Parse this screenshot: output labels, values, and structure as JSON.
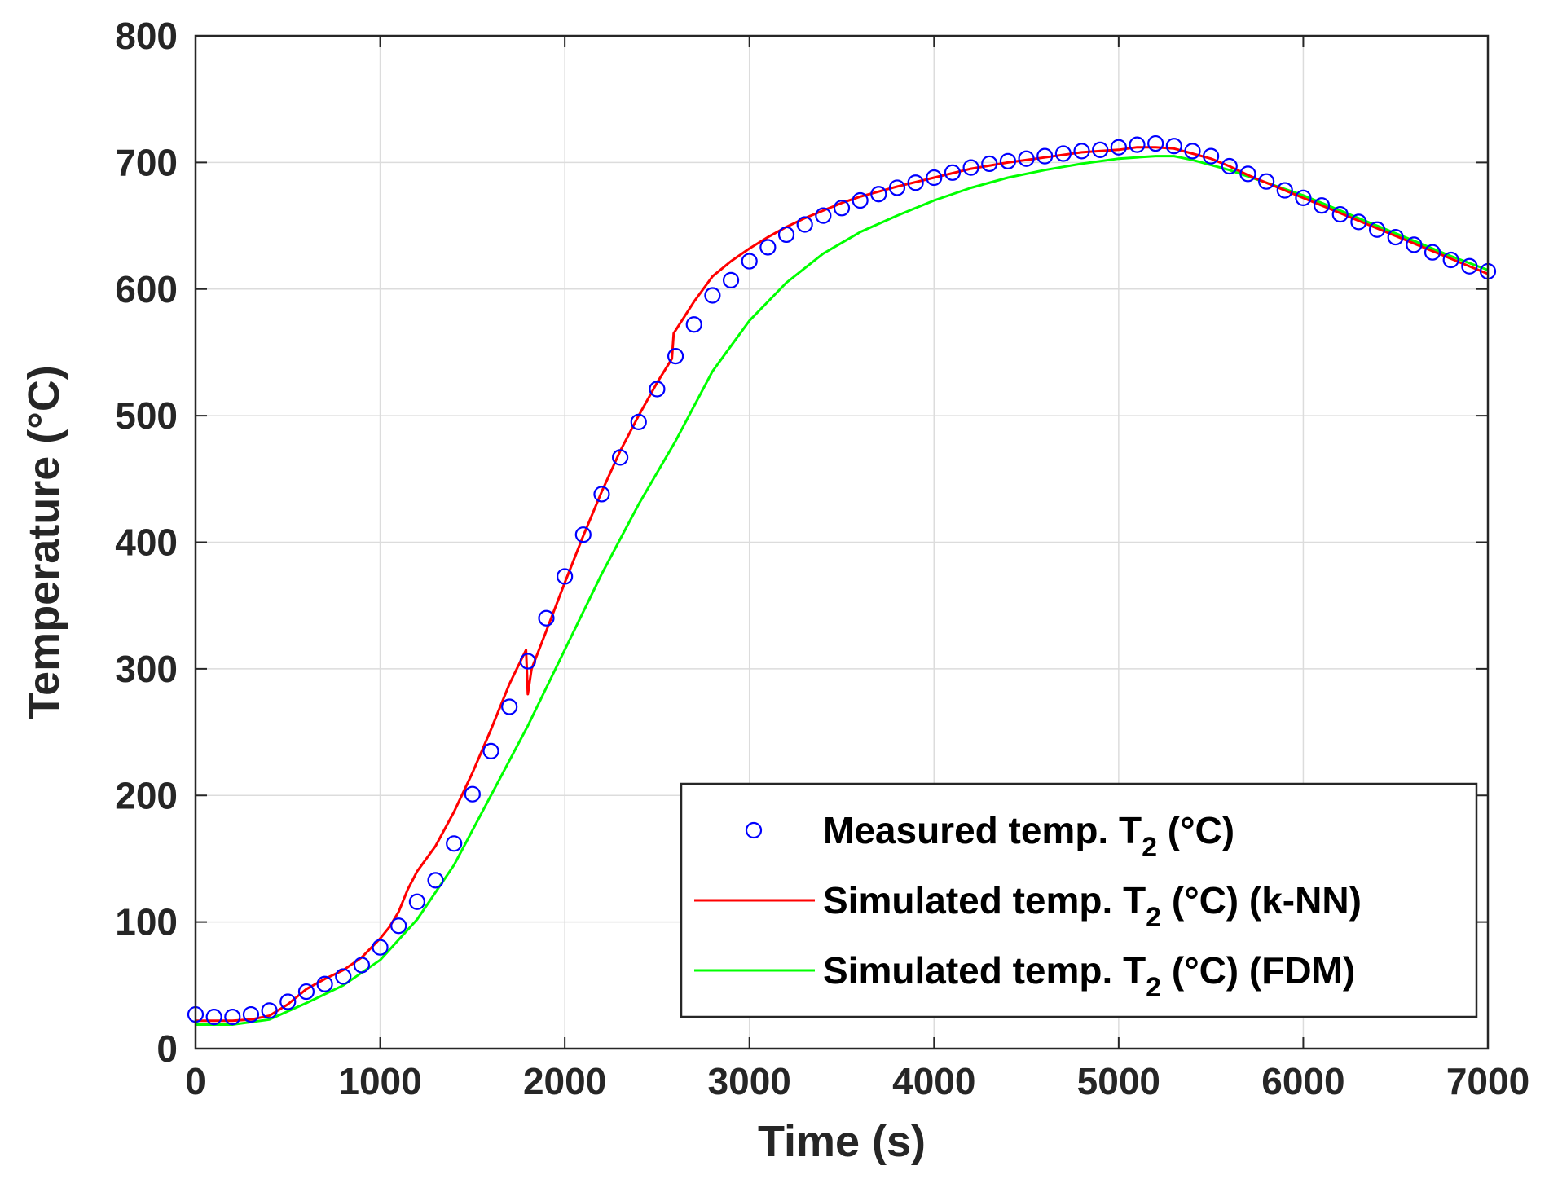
{
  "chart_data": {
    "type": "line",
    "title": "",
    "xlabel": "Time (s)",
    "ylabel": "Temperature (°C)",
    "xlim": [
      0,
      7000
    ],
    "ylim": [
      0,
      800
    ],
    "xticks": [
      "0",
      "1000",
      "2000",
      "3000",
      "4000",
      "5000",
      "6000",
      "7000"
    ],
    "yticks": [
      "0",
      "100",
      "200",
      "300",
      "400",
      "500",
      "600",
      "700",
      "800"
    ],
    "grid": true,
    "legend_position": "bottom-right",
    "colors": {
      "measured": "#0000ff",
      "knn": "#ff0000",
      "fdm": "#00ff00",
      "axis": "#262626",
      "grid": "#dcdcdc"
    },
    "series": [
      {
        "name": "Measured temp. T",
        "subscript": "2",
        "suffix": " (°C)",
        "style": "markers",
        "x": [
          0,
          100,
          200,
          300,
          400,
          500,
          600,
          700,
          800,
          900,
          1000,
          1100,
          1200,
          1300,
          1400,
          1500,
          1600,
          1700,
          1800,
          1900,
          2000,
          2100,
          2200,
          2300,
          2400,
          2500,
          2600,
          2700,
          2800,
          2900,
          3000,
          3100,
          3200,
          3300,
          3400,
          3500,
          3600,
          3700,
          3800,
          3900,
          4000,
          4100,
          4200,
          4300,
          4400,
          4500,
          4600,
          4700,
          4800,
          4900,
          5000,
          5100,
          5200,
          5300,
          5400,
          5500,
          5600,
          5700,
          5800,
          5900,
          6000,
          6100,
          6200,
          6300,
          6400,
          6500,
          6600,
          6700,
          6800,
          6900,
          7000
        ],
        "y": [
          27,
          25,
          25,
          27,
          30,
          37,
          45,
          51,
          57,
          66,
          80,
          97,
          116,
          133,
          162,
          201,
          235,
          270,
          306,
          340,
          373,
          406,
          438,
          467,
          495,
          521,
          547,
          572,
          595,
          607,
          622,
          633,
          643,
          651,
          658,
          664,
          670,
          675,
          680,
          684,
          688,
          692,
          696,
          699,
          701,
          703,
          705,
          707,
          709,
          710,
          712,
          714,
          715,
          713,
          709,
          705,
          697,
          691,
          685,
          678,
          672,
          666,
          659,
          653,
          647,
          641,
          635,
          629,
          623,
          618,
          614
        ]
      },
      {
        "name": "Simulated temp. T",
        "subscript": "2",
        "suffix": " (°C) (k-NN)",
        "style": "line",
        "x": [
          0,
          100,
          200,
          300,
          400,
          500,
          600,
          700,
          800,
          900,
          1000,
          1050,
          1100,
          1150,
          1200,
          1300,
          1400,
          1500,
          1600,
          1700,
          1790,
          1800,
          1820,
          1900,
          2000,
          2100,
          2200,
          2300,
          2400,
          2500,
          2580,
          2590,
          2700,
          2800,
          2900,
          3000,
          3100,
          3200,
          3300,
          3400,
          3500,
          3600,
          3800,
          4000,
          4200,
          4400,
          4600,
          4800,
          5000,
          5100,
          5200,
          5300,
          5400,
          5500,
          5600,
          5700,
          5800,
          5900,
          6000,
          6200,
          6400,
          6600,
          6800,
          7000
        ],
        "y": [
          22,
          22,
          22,
          23,
          26,
          35,
          47,
          55,
          62,
          72,
          87,
          96,
          108,
          126,
          140,
          160,
          187,
          218,
          252,
          288,
          315,
          280,
          300,
          330,
          368,
          405,
          440,
          472,
          500,
          526,
          545,
          565,
          590,
          610,
          622,
          632,
          641,
          649,
          656,
          662,
          668,
          673,
          681,
          688,
          695,
          700,
          704,
          708,
          710,
          712,
          712,
          711,
          707,
          703,
          697,
          690,
          684,
          678,
          672,
          660,
          648,
          636,
          624,
          612
        ]
      },
      {
        "name": "Simulated temp. T",
        "subscript": "2",
        "suffix": " (°C) (FDM)",
        "style": "line",
        "x": [
          0,
          200,
          400,
          600,
          800,
          1000,
          1200,
          1400,
          1600,
          1800,
          2000,
          2200,
          2400,
          2600,
          2800,
          3000,
          3200,
          3400,
          3600,
          3800,
          4000,
          4200,
          4400,
          4600,
          4800,
          5000,
          5200,
          5300,
          5400,
          5600,
          5800,
          6000,
          6200,
          6400,
          6600,
          6800,
          7000
        ],
        "y": [
          19,
          19,
          23,
          36,
          50,
          70,
          102,
          145,
          200,
          255,
          315,
          375,
          430,
          480,
          535,
          575,
          605,
          628,
          645,
          658,
          670,
          680,
          688,
          694,
          699,
          703,
          705,
          705,
          702,
          694,
          684,
          674,
          662,
          650,
          638,
          626,
          615
        ]
      }
    ]
  }
}
